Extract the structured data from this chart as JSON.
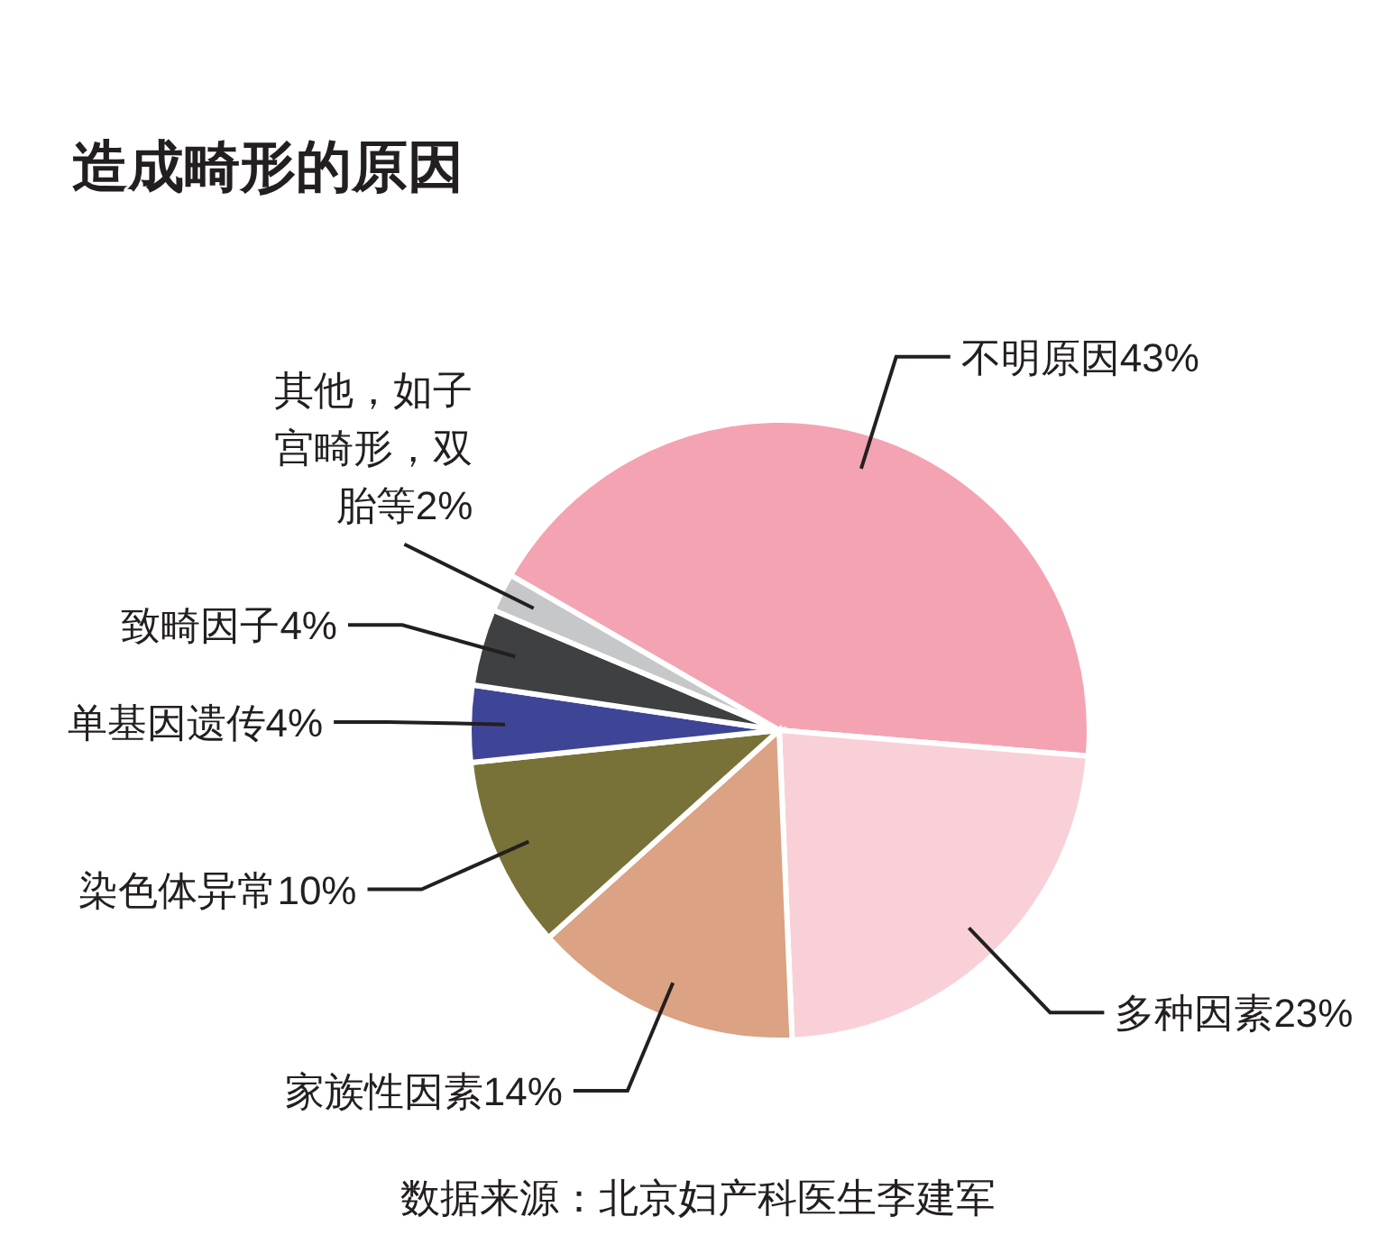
{
  "chart_data": {
    "type": "pie",
    "title": "造成畸形的原因",
    "categories": [
      "不明原因",
      "多种因素",
      "家族性因素",
      "染色体异常",
      "单基因遗传",
      "致畸因子",
      "其他，如子宫畸形，双胎等"
    ],
    "values": [
      43,
      23,
      14,
      10,
      4,
      4,
      2
    ],
    "colors": [
      "#f4a3b3",
      "#f9d0d8",
      "#dba283",
      "#787238",
      "#3f4596",
      "#3f4042",
      "#c5c7c9"
    ],
    "value_labels": [
      "43%",
      "23%",
      "14%",
      "10%",
      "4%",
      "4%",
      "2%"
    ],
    "annotations": [
      "数据来源：北京妇产科医生李建军"
    ]
  }
}
